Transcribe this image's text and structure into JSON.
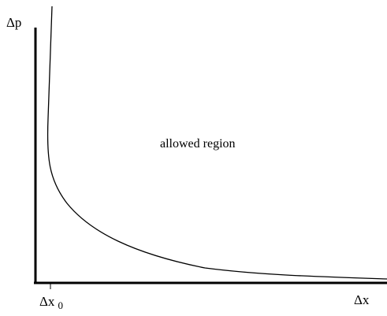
{
  "chart_data": {
    "type": "line",
    "title": "",
    "xlabel": "Δx",
    "ylabel": "Δp",
    "tick_label": {
      "base": "Δx",
      "subscript": "0"
    },
    "annotation": "allowed region",
    "grid": false,
    "legend": "none",
    "colors": {
      "curve": "#000000",
      "axes": "#000000"
    }
  }
}
